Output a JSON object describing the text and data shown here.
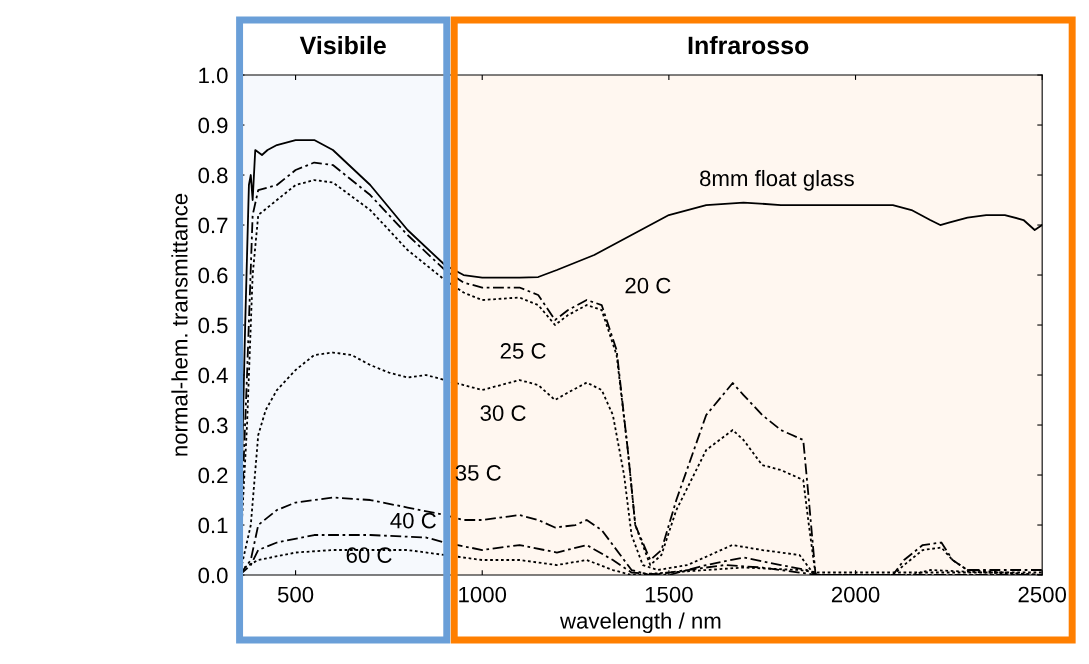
{
  "chart_data": {
    "type": "line",
    "xlabel": "wavelength / nm",
    "ylabel": "normal-hem. transmittance",
    "xlim": [
      350,
      2500
    ],
    "xticks": [
      500,
      1000,
      1500,
      2000,
      2500
    ],
    "ylim": [
      0,
      1.0
    ],
    "yticks": [
      {
        "value": 0,
        "label": "0.0"
      },
      {
        "value": 0.1,
        "label": "0.1"
      },
      {
        "value": 0.2,
        "label": "0.2"
      },
      {
        "value": 0.3,
        "label": "0.3"
      },
      {
        "value": 0.4,
        "label": "0.4"
      },
      {
        "value": 0.5,
        "label": "0.5"
      },
      {
        "value": 0.6,
        "label": "0.6"
      },
      {
        "value": 0.7,
        "label": "0.7"
      },
      {
        "value": 0.8,
        "label": "0.8"
      },
      {
        "value": 0.9,
        "label": "0.9"
      },
      {
        "value": 1.0,
        "label": "1.0"
      }
    ],
    "grid": false,
    "legend": false,
    "series": [
      {
        "color": "#000000",
        "line_style": "solid",
        "x": [
          350,
          365,
          375,
          380,
          385,
          392,
          410,
          425,
          450,
          500,
          550,
          600,
          700,
          800,
          900,
          950,
          1000,
          1100,
          1150,
          1200,
          1300,
          1400,
          1500,
          1600,
          1700,
          1800,
          1900,
          2000,
          2100,
          2150,
          2200,
          2227,
          2250,
          2300,
          2350,
          2400,
          2450,
          2480,
          2500
        ],
        "values": [
          0.02,
          0.5,
          0.78,
          0.8,
          0.75,
          0.85,
          0.84,
          0.85,
          0.86,
          0.87,
          0.87,
          0.85,
          0.78,
          0.69,
          0.62,
          0.6,
          0.595,
          0.595,
          0.596,
          0.61,
          0.64,
          0.68,
          0.72,
          0.74,
          0.745,
          0.74,
          0.74,
          0.74,
          0.74,
          0.73,
          0.71,
          0.7,
          0.705,
          0.715,
          0.72,
          0.72,
          0.71,
          0.69,
          0.7
        ]
      },
      {
        "color": "#000000",
        "line_style": "dashed",
        "x": [
          350,
          370,
          385,
          400,
          450,
          500,
          550,
          600,
          700,
          800,
          900,
          950,
          1000,
          1100,
          1150,
          1195,
          1230,
          1280,
          1320,
          1360,
          1390,
          1410,
          1450,
          1480,
          1520,
          1600,
          1671,
          1700,
          1750,
          1800,
          1830,
          1860,
          1875,
          1893,
          2100,
          2130,
          2180,
          2230,
          2260,
          2300,
          2500
        ],
        "values": [
          0.02,
          0.4,
          0.72,
          0.77,
          0.78,
          0.81,
          0.825,
          0.82,
          0.76,
          0.68,
          0.61,
          0.585,
          0.575,
          0.575,
          0.56,
          0.51,
          0.53,
          0.55,
          0.54,
          0.45,
          0.25,
          0.1,
          0.03,
          0.05,
          0.15,
          0.32,
          0.384,
          0.36,
          0.32,
          0.29,
          0.28,
          0.27,
          0.15,
          0.0,
          0.0,
          0.03,
          0.06,
          0.065,
          0.03,
          0.01,
          0.01
        ]
      },
      {
        "color": "#000000",
        "line_style": "dotted",
        "x": [
          350,
          370,
          385,
          400,
          450,
          500,
          550,
          600,
          700,
          800,
          900,
          950,
          1000,
          1100,
          1150,
          1195,
          1230,
          1280,
          1320,
          1360,
          1390,
          1410,
          1450,
          1480,
          1520,
          1600,
          1671,
          1700,
          1750,
          1800,
          1830,
          1860,
          1875,
          1893,
          2100,
          2130,
          2180,
          2230,
          2260,
          2300,
          2500
        ],
        "values": [
          0.02,
          0.3,
          0.6,
          0.72,
          0.75,
          0.78,
          0.79,
          0.785,
          0.73,
          0.65,
          0.59,
          0.565,
          0.55,
          0.555,
          0.54,
          0.5,
          0.52,
          0.54,
          0.53,
          0.44,
          0.25,
          0.1,
          0.02,
          0.04,
          0.13,
          0.25,
          0.29,
          0.27,
          0.22,
          0.21,
          0.2,
          0.19,
          0.1,
          0.0,
          0.0,
          0.02,
          0.05,
          0.055,
          0.03,
          0.01,
          0.0
        ]
      },
      {
        "color": "#000000",
        "line_style": "dotted",
        "x": [
          350,
          380,
          400,
          420,
          450,
          500,
          550,
          600,
          650,
          700,
          750,
          800,
          850,
          900,
          950,
          1000,
          1050,
          1100,
          1150,
          1195,
          1230,
          1280,
          1320,
          1350,
          1380,
          1400,
          1430,
          1470,
          1550,
          1670,
          1750,
          1850,
          1890,
          2150,
          2200,
          2500
        ],
        "values": [
          0.0,
          0.1,
          0.28,
          0.33,
          0.37,
          0.41,
          0.44,
          0.445,
          0.44,
          0.42,
          0.405,
          0.395,
          0.4,
          0.39,
          0.38,
          0.37,
          0.38,
          0.39,
          0.38,
          0.35,
          0.365,
          0.385,
          0.37,
          0.32,
          0.2,
          0.08,
          0.02,
          0.01,
          0.02,
          0.06,
          0.05,
          0.04,
          0.0,
          0.0,
          0.01,
          0.0
        ]
      },
      {
        "color": "#000000",
        "line_style": "dashed",
        "x": [
          350,
          380,
          400,
          450,
          500,
          600,
          700,
          800,
          900,
          950,
          1000,
          1100,
          1150,
          1195,
          1250,
          1280,
          1320,
          1370,
          1400,
          1450,
          1550,
          1650,
          1750,
          1850,
          1900,
          2500
        ],
        "values": [
          0.0,
          0.03,
          0.1,
          0.13,
          0.145,
          0.155,
          0.15,
          0.135,
          0.12,
          0.11,
          0.11,
          0.12,
          0.11,
          0.095,
          0.1,
          0.11,
          0.09,
          0.04,
          0.01,
          0.0,
          0.01,
          0.02,
          0.015,
          0.005,
          0.0,
          0.0
        ]
      },
      {
        "color": "#000000",
        "line_style": "dashed",
        "x": [
          350,
          380,
          400,
          450,
          550,
          700,
          850,
          900,
          1000,
          1100,
          1200,
          1280,
          1350,
          1400,
          1500,
          1600,
          1700,
          1800,
          1870,
          1900,
          2500
        ],
        "values": [
          0.0,
          0.02,
          0.05,
          0.065,
          0.08,
          0.08,
          0.075,
          0.065,
          0.05,
          0.06,
          0.045,
          0.06,
          0.03,
          0.005,
          0.0,
          0.02,
          0.035,
          0.02,
          0.01,
          0.0,
          0.0
        ]
      },
      {
        "color": "#000000",
        "line_style": "dotted",
        "x": [
          350,
          400,
          500,
          600,
          800,
          900,
          1000,
          1100,
          1200,
          1280,
          1350,
          1400,
          1600,
          1700,
          1850,
          1900,
          2500
        ],
        "values": [
          0.01,
          0.03,
          0.045,
          0.05,
          0.05,
          0.04,
          0.03,
          0.03,
          0.02,
          0.03,
          0.01,
          0.0,
          0.01,
          0.015,
          0.01,
          0.005,
          0.005
        ]
      }
    ],
    "annotations": [
      {
        "text": "8mm float glass",
        "x": 1700,
        "y": 0.745
      },
      {
        "text": "20 C",
        "x": 1280,
        "y": 0.55
      },
      {
        "text": "25 C",
        "x": 1195,
        "y": 0.5
      },
      {
        "text": "30 C",
        "x": 1000,
        "y": 0.37
      },
      {
        "text": "35 C",
        "x": 900,
        "y": 0.12
      },
      {
        "text": "40 C",
        "x": 700,
        "y": 0.08
      },
      {
        "text": "60 C",
        "x": 600,
        "y": 0.05
      }
    ],
    "bands": [
      {
        "axis": "x",
        "from": 350,
        "to": 905,
        "label": "Visibile",
        "color": "#6a9fd8"
      },
      {
        "axis": "x",
        "from": 925,
        "to": 2500,
        "label": "Infrarosso",
        "color": "#ff7f00"
      }
    ]
  }
}
